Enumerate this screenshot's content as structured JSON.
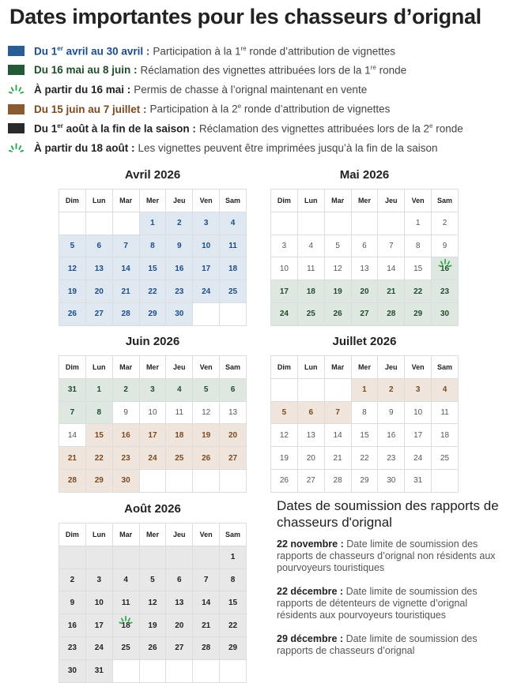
{
  "title": "Dates importantes pour les chasseurs d’orignal",
  "colors": {
    "blue": "#1b4d8c",
    "green": "#1f4d2c",
    "brown": "#7b4a1e",
    "black": "#222222",
    "spark": "#2aa84a"
  },
  "legend": [
    {
      "icon": "blue-swatch",
      "color": "#2a5d96",
      "date": "Du 1er avril au 30 avril :",
      "text": "Participation à la 1re ronde d’attribution de vignettes"
    },
    {
      "icon": "green-swatch",
      "color": "#245a36",
      "date": "Du 16 mai au 8 juin :",
      "text": "Réclamation des vignettes attribuées lors de la 1re ronde"
    },
    {
      "icon": "sparkle",
      "date": "À partir du 16 mai :",
      "text": "Permis de chasse à l’orignal maintenant en vente"
    },
    {
      "icon": "brown-swatch",
      "color": "#8a5a30",
      "date": "Du 15 juin au 7 juillet :",
      "text": "Participation à la 2e ronde d’attribution de vignettes"
    },
    {
      "icon": "black-swatch",
      "color": "#2a2a2a",
      "date": "Du 1er août à la fin de la saison :",
      "text": "Réclamation des vignettes attribuées lors de la 2e ronde"
    },
    {
      "icon": "sparkle",
      "date": "À partir du 18 août :",
      "text": "Les vignettes peuvent être imprimées jusqu’à la fin de la saison"
    }
  ],
  "weekdays": [
    "Dim",
    "Lun",
    "Mar",
    "Mer",
    "Jeu",
    "Ven",
    "Sam"
  ],
  "months": [
    {
      "name": "Avril 2026",
      "weeks": [
        [
          "",
          "",
          "",
          "1",
          "2",
          "3",
          "4"
        ],
        [
          "5",
          "6",
          "7",
          "8",
          "9",
          "10",
          "11"
        ],
        [
          "12",
          "13",
          "14",
          "15",
          "16",
          "17",
          "18"
        ],
        [
          "19",
          "20",
          "21",
          "22",
          "23",
          "24",
          "25"
        ],
        [
          "26",
          "27",
          "28",
          "29",
          "30",
          "",
          ""
        ]
      ],
      "styles": [
        "---bbbb",
        "bbbbbbb",
        "bbbbbbb",
        "bbbbbbb",
        "bbbbb--"
      ]
    },
    {
      "name": "Mai 2026",
      "weeks": [
        [
          "",
          "",
          "",
          "",
          "",
          "1",
          "2"
        ],
        [
          "3",
          "4",
          "5",
          "6",
          "7",
          "8",
          "9"
        ],
        [
          "10",
          "11",
          "12",
          "13",
          "14",
          "15",
          "16"
        ],
        [
          "17",
          "18",
          "19",
          "20",
          "21",
          "22",
          "23"
        ],
        [
          "24",
          "25",
          "26",
          "27",
          "28",
          "29",
          "30"
        ]
      ],
      "styles": [
        "-----pp",
        "ppppppp",
        "ppppppS",
        "ggggggg",
        "ggggggg"
      ]
    },
    {
      "name": "Juin 2026",
      "weeks": [
        [
          "31",
          "1",
          "2",
          "3",
          "4",
          "5",
          "6"
        ],
        [
          "7",
          "8",
          "9",
          "10",
          "11",
          "12",
          "13"
        ],
        [
          "14",
          "15",
          "16",
          "17",
          "18",
          "19",
          "20"
        ],
        [
          "21",
          "22",
          "23",
          "24",
          "25",
          "26",
          "27"
        ],
        [
          "28",
          "29",
          "30",
          "",
          "",
          "",
          ""
        ]
      ],
      "styles": [
        "ggggggg",
        "ggppppp",
        "prrrrrr",
        "rrrrrrr",
        "rrr----"
      ]
    },
    {
      "name": "Juillet 2026",
      "weeks": [
        [
          "",
          "",
          "",
          "1",
          "2",
          "3",
          "4"
        ],
        [
          "5",
          "6",
          "7",
          "8",
          "9",
          "10",
          "11"
        ],
        [
          "12",
          "13",
          "14",
          "15",
          "16",
          "17",
          "18"
        ],
        [
          "19",
          "20",
          "21",
          "22",
          "23",
          "24",
          "25"
        ],
        [
          "26",
          "27",
          "28",
          "29",
          "30",
          "31",
          ""
        ]
      ],
      "styles": [
        "---rrrr",
        "rrrpppp",
        "ppppppp",
        "ppppppp",
        "pppppp-"
      ]
    },
    {
      "name": "Août 2026",
      "weeks": [
        [
          "",
          "",
          "",
          "",
          "",
          "",
          "1"
        ],
        [
          "2",
          "3",
          "4",
          "5",
          "6",
          "7",
          "8"
        ],
        [
          "9",
          "10",
          "11",
          "12",
          "13",
          "14",
          "15"
        ],
        [
          "16",
          "17",
          "18",
          "19",
          "20",
          "21",
          "22"
        ],
        [
          "23",
          "24",
          "25",
          "26",
          "27",
          "28",
          "29"
        ],
        [
          "30",
          "31",
          "",
          "",
          "",
          "",
          ""
        ]
      ],
      "styles": [
        "kkkkkkk",
        "kkkkkkk",
        "kkkkkkk",
        "kkKkkkk",
        "kkkkkkk",
        "kk-----"
      ]
    }
  ],
  "side": {
    "title": "Dates de soumission des rapports de chasseurs d'orignal",
    "items": [
      {
        "date": "22 novembre :",
        "text": "Date limite de soumission des rapports de chasseurs d’orignal non résidents aux pourvoyeurs touristiques"
      },
      {
        "date": "22 décembre :",
        "text": "Date limite de soumission des rapports de détenteurs de vignette d’orignal résidents aux pourvoyeurs touristiques"
      },
      {
        "date": "29 décembre :",
        "text": "Date limite de soumission des rapports de chasseurs d’orignal"
      }
    ]
  }
}
